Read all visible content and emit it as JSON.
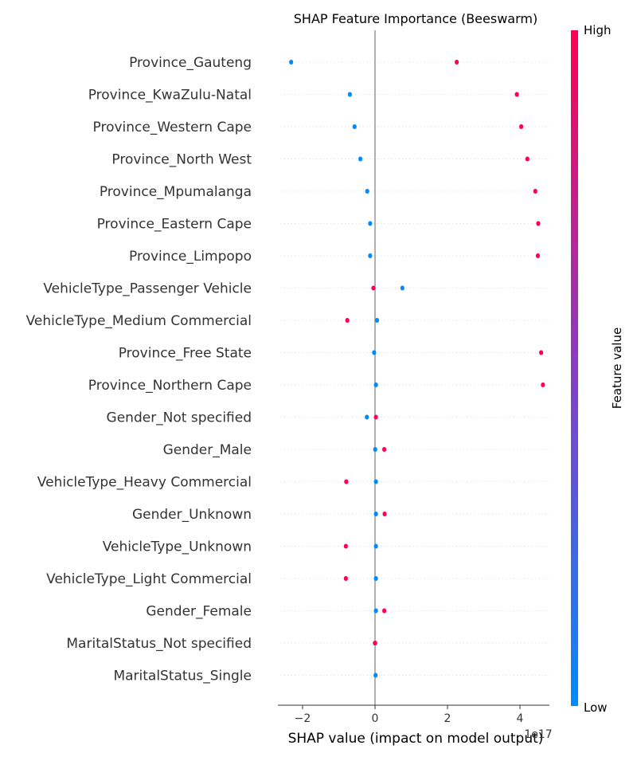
{
  "chart_data": {
    "type": "scatter",
    "title": "SHAP Feature Importance (Beeswarm)",
    "xlabel": "SHAP value (impact on model output)",
    "x_scale_note": "1e17",
    "xlim": [
      -2.75,
      5.0
    ],
    "xticks": [
      -2,
      0,
      2,
      4
    ],
    "colorbar": {
      "label": "Feature value",
      "high": "High",
      "low": "Low",
      "low_color": "#008bfb",
      "high_color": "#ff0052"
    },
    "zero_line_color": "#999999",
    "features": [
      {
        "name": "Province_Gauteng",
        "clusters": [
          {
            "x": [
              -2.37,
              -2.3
            ],
            "value": "low"
          },
          {
            "x": [
              2.2,
              2.27
            ],
            "value": "high"
          }
        ]
      },
      {
        "name": "Province_KwaZulu-Natal",
        "clusters": [
          {
            "x": [
              -0.75,
              -0.66
            ],
            "value": "low"
          },
          {
            "x": [
              3.86,
              3.92
            ],
            "value": "high"
          }
        ]
      },
      {
        "name": "Province_Western Cape",
        "clusters": [
          {
            "x": [
              -0.62,
              -0.56
            ],
            "value": "low"
          },
          {
            "x": [
              3.98,
              4.03
            ],
            "value": "high"
          }
        ]
      },
      {
        "name": "Province_North West",
        "clusters": [
          {
            "x": [
              -0.46,
              -0.42
            ],
            "value": "low"
          },
          {
            "x": [
              4.15,
              4.22
            ],
            "value": "high"
          }
        ]
      },
      {
        "name": "Province_Mpumalanga",
        "clusters": [
          {
            "x": [
              -0.27,
              -0.22
            ],
            "value": "low"
          },
          {
            "x": [
              4.37,
              4.42
            ],
            "value": "high"
          }
        ]
      },
      {
        "name": "Province_Eastern Cape",
        "clusters": [
          {
            "x": [
              -0.19,
              -0.14
            ],
            "value": "low"
          },
          {
            "x": [
              4.45,
              4.5
            ],
            "value": "high"
          }
        ]
      },
      {
        "name": "Province_Limpopo",
        "clusters": [
          {
            "x": [
              -0.19,
              -0.14
            ],
            "value": "low"
          },
          {
            "x": [
              4.44,
              4.49
            ],
            "value": "high"
          }
        ]
      },
      {
        "name": "VehicleType_Passenger Vehicle",
        "clusters": [
          {
            "x": [
              -0.1,
              -0.05
            ],
            "value": "high"
          },
          {
            "x": [
              0.7,
              0.78
            ],
            "value": "low"
          }
        ]
      },
      {
        "name": "VehicleType_Medium Commercial",
        "clusters": [
          {
            "x": [
              -0.82,
              -0.75
            ],
            "value": "high"
          },
          {
            "x": [
              0.0,
              0.07
            ],
            "value": "low"
          }
        ]
      },
      {
        "name": "Province_Free State",
        "clusters": [
          {
            "x": [
              -0.08,
              -0.03
            ],
            "value": "low"
          },
          {
            "x": [
              4.53,
              4.58
            ],
            "value": "high"
          }
        ]
      },
      {
        "name": "Province_Northern Cape",
        "clusters": [
          {
            "x": [
              -0.03,
              0.02
            ],
            "value": "low"
          },
          {
            "x": [
              4.58,
              4.63
            ],
            "value": "high"
          }
        ]
      },
      {
        "name": "Gender_Not specified",
        "clusters": [
          {
            "x": [
              -0.28,
              -0.2
            ],
            "value": "low"
          },
          {
            "x": [
              -0.03,
              0.04
            ],
            "value": "high"
          }
        ]
      },
      {
        "name": "Gender_Male",
        "clusters": [
          {
            "x": [
              -0.05,
              0.03
            ],
            "value": "low"
          },
          {
            "x": [
              0.2,
              0.25
            ],
            "value": "high"
          }
        ]
      },
      {
        "name": "VehicleType_Heavy Commercial",
        "clusters": [
          {
            "x": [
              -0.85,
              -0.8
            ],
            "value": "high"
          },
          {
            "x": [
              -0.03,
              0.02
            ],
            "value": "low"
          }
        ]
      },
      {
        "name": "Gender_Unknown",
        "clusters": [
          {
            "x": [
              -0.03,
              0.02
            ],
            "value": "low"
          },
          {
            "x": [
              0.21,
              0.26
            ],
            "value": "high"
          }
        ]
      },
      {
        "name": "VehicleType_Unknown",
        "clusters": [
          {
            "x": [
              -0.86,
              -0.81
            ],
            "value": "high"
          },
          {
            "x": [
              -0.03,
              0.02
            ],
            "value": "low"
          }
        ]
      },
      {
        "name": "VehicleType_Light Commercial",
        "clusters": [
          {
            "x": [
              -0.86,
              -0.81
            ],
            "value": "high"
          },
          {
            "x": [
              -0.03,
              0.02
            ],
            "value": "low"
          }
        ]
      },
      {
        "name": "Gender_Female",
        "clusters": [
          {
            "x": [
              -0.03,
              0.02
            ],
            "value": "low"
          },
          {
            "x": [
              0.2,
              0.25
            ],
            "value": "high"
          }
        ]
      },
      {
        "name": "MaritalStatus_Not specified",
        "clusters": [
          {
            "x": [
              -0.06,
              0.06
            ],
            "value": "high"
          }
        ]
      },
      {
        "name": "MaritalStatus_Single",
        "clusters": [
          {
            "x": [
              -0.04,
              0.04
            ],
            "value": "low"
          }
        ]
      }
    ]
  }
}
